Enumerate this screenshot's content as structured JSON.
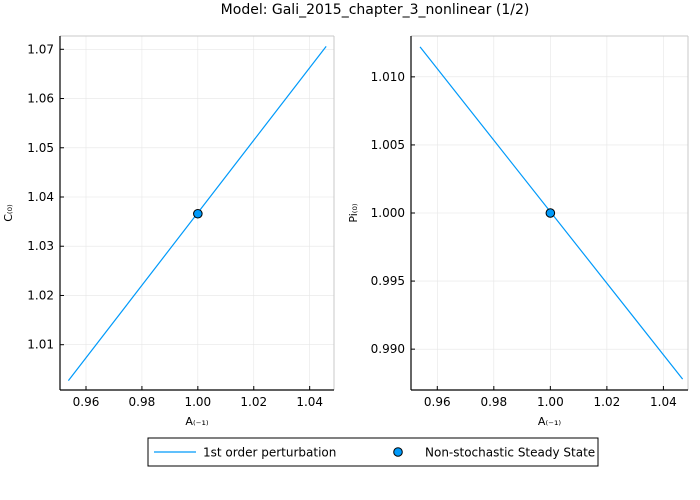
{
  "title": "Model: Gali_2015_chapter_3_nonlinear  (1/2)",
  "colors": {
    "series_line": "#009AFA",
    "marker_fill": "#009AFA",
    "marker_edge": "#000000",
    "grid": "#E6E6E6",
    "frame": "#000000",
    "frame_light": "#C8C8C8"
  },
  "legend": {
    "items": [
      {
        "label": "1st order perturbation",
        "symbol": "line"
      },
      {
        "label": "Non-stochastic Steady State",
        "symbol": "circle-marker"
      }
    ],
    "position": "bottom-center"
  },
  "chart_data": [
    {
      "type": "line",
      "title": "",
      "xlabel": "A₍₋₁₎",
      "ylabel": "C₍₀₎",
      "xticks": [
        "0.96",
        "0.98",
        "1.00",
        "1.02",
        "1.04"
      ],
      "yticks": [
        "1.01",
        "1.02",
        "1.03",
        "1.04",
        "1.05",
        "1.06",
        "1.07"
      ],
      "xlim": [
        0.9507,
        1.0487
      ],
      "ylim": [
        1.0008,
        1.0727
      ],
      "grid": true,
      "series": [
        {
          "name": "1st order perturbation",
          "x": [
            0.9537,
            1.0459
          ],
          "y": [
            1.0027,
            1.0706
          ]
        },
        {
          "name": "Non-stochastic Steady State",
          "x": [
            1.0
          ],
          "y": [
            1.0366
          ],
          "marker": "circle"
        }
      ]
    },
    {
      "type": "line",
      "title": "",
      "xlabel": "A₍₋₁₎",
      "ylabel": "Pi₍₀₎",
      "xticks": [
        "0.96",
        "0.98",
        "1.00",
        "1.02",
        "1.04"
      ],
      "yticks": [
        "0.990",
        "0.995",
        "1.000",
        "1.005",
        "1.010"
      ],
      "xlim": [
        0.9507,
        1.0487
      ],
      "ylim": [
        0.987,
        1.013
      ],
      "grid": true,
      "series": [
        {
          "name": "1st order perturbation",
          "x": [
            0.9539,
            1.0468
          ],
          "y": [
            1.0122,
            0.9878
          ]
        },
        {
          "name": "Non-stochastic Steady State",
          "x": [
            1.0
          ],
          "y": [
            1.0
          ],
          "marker": "circle"
        }
      ]
    }
  ]
}
